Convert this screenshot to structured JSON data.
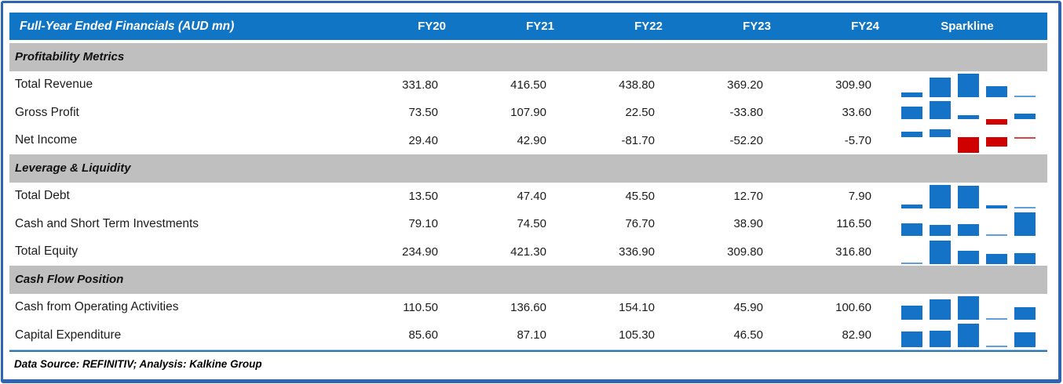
{
  "table": {
    "title": "Full-Year Ended Financials (AUD mn)",
    "columns": [
      "FY20",
      "FY21",
      "FY22",
      "FY23",
      "FY24"
    ],
    "sparkline_header": "Sparkline",
    "sections": [
      {
        "label": "Profitability Metrics",
        "rows": [
          {
            "label": "Total Revenue",
            "values": [
              "331.80",
              "416.50",
              "438.80",
              "369.20",
              "309.90"
            ]
          },
          {
            "label": "Gross Profit",
            "values": [
              "73.50",
              "107.90",
              "22.50",
              "-33.80",
              "33.60"
            ]
          },
          {
            "label": "Net Income",
            "values": [
              "29.40",
              "42.90",
              "-81.70",
              "-52.20",
              "-5.70"
            ]
          }
        ]
      },
      {
        "label": "Leverage & Liquidity",
        "rows": [
          {
            "label": "Total Debt",
            "values": [
              "13.50",
              "47.40",
              "45.50",
              "12.70",
              "7.90"
            ]
          },
          {
            "label": "Cash and Short Term Investments",
            "values": [
              "79.10",
              "74.50",
              "76.70",
              "38.90",
              "116.50"
            ]
          },
          {
            "label": "Total Equity",
            "values": [
              "234.90",
              "421.30",
              "336.90",
              "309.80",
              "316.80"
            ]
          }
        ]
      },
      {
        "label": "Cash Flow Position",
        "rows": [
          {
            "label": "Cash from Operating Activities",
            "values": [
              "110.50",
              "136.60",
              "154.10",
              "45.90",
              "100.60"
            ]
          },
          {
            "label": "Capital Expenditure",
            "values": [
              "85.60",
              "87.10",
              "105.30",
              "46.50",
              "82.90"
            ]
          }
        ]
      }
    ]
  },
  "chart_data": {
    "type": "bar",
    "note": "row sparklines, one mini bar chart per table row",
    "categories": [
      "FY20",
      "FY21",
      "FY22",
      "FY23",
      "FY24"
    ],
    "series": [
      {
        "name": "Total Revenue",
        "values": [
          331.8,
          416.5,
          438.8,
          369.2,
          309.9
        ]
      },
      {
        "name": "Gross Profit",
        "values": [
          73.5,
          107.9,
          22.5,
          -33.8,
          33.6
        ]
      },
      {
        "name": "Net Income",
        "values": [
          29.4,
          42.9,
          -81.7,
          -52.2,
          -5.7
        ]
      },
      {
        "name": "Total Debt",
        "values": [
          13.5,
          47.4,
          45.5,
          12.7,
          7.9
        ]
      },
      {
        "name": "Cash and Short Term Investments",
        "values": [
          79.1,
          74.5,
          76.7,
          38.9,
          116.5
        ]
      },
      {
        "name": "Total Equity",
        "values": [
          234.9,
          421.3,
          336.9,
          309.8,
          316.8
        ]
      },
      {
        "name": "Cash from Operating Activities",
        "values": [
          110.5,
          136.6,
          154.1,
          45.9,
          100.6
        ]
      },
      {
        "name": "Capital Expenditure",
        "values": [
          85.6,
          87.1,
          105.3,
          46.5,
          82.9
        ]
      }
    ],
    "legend_position": "none",
    "grid": false
  },
  "footer": {
    "text": "Data Source: REFINITIV; Analysis: Kalkine Group"
  },
  "colors": {
    "header_bg": "#1175c6",
    "header_text": "#ffffff",
    "section_bg": "#bfbfbf",
    "bar_positive": "#1473c6",
    "bar_negative": "#d00000",
    "bar_positive_min": "#5fa0dc",
    "bar_negative_min": "#dd4444",
    "bottom_rule": "#2e75b6",
    "outer_border": "#2e64b1"
  }
}
